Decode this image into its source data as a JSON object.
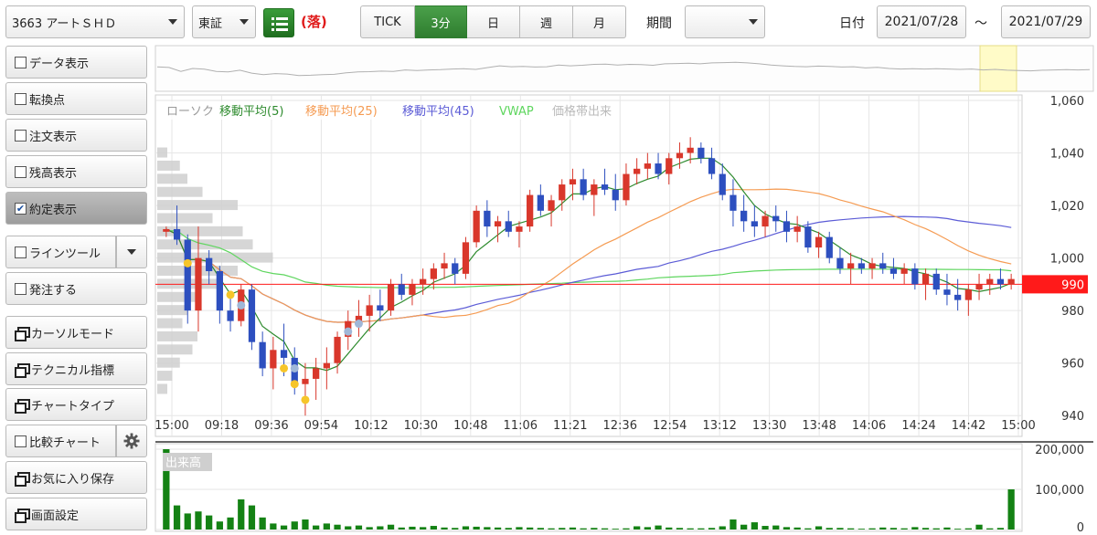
{
  "toolbar": {
    "stock": "3663 アートＳＨＤ",
    "market": "東証",
    "list_icon": "list-icon",
    "status": "(落)",
    "intervals": [
      "TICK",
      "3分",
      "日",
      "週",
      "月"
    ],
    "active_interval": "3分",
    "period_label": "期間",
    "period_value": "",
    "date_label": "日付",
    "date_from": "2021/07/28",
    "date_sep": "～",
    "date_to": "2021/07/29"
  },
  "sidebar": {
    "data_display": "データ表示",
    "turning_point": "転換点",
    "order_display": "注文表示",
    "balance_display": "残高表示",
    "executed_display": "約定表示",
    "line_tool": "ラインツール",
    "place_order": "発注する",
    "cursor_mode": "カーソルモード",
    "technical": "テクニカル指標",
    "chart_type": "チャートタイプ",
    "compare_chart": "比較チャート",
    "save_favorite": "お気に入り保存",
    "screen_settings": "画面設定",
    "gear_icon": "gear-icon"
  },
  "colors": {
    "up": "#d9372b",
    "down": "#2d4fbf",
    "ma5": "#2e8b2e",
    "ma25": "#f59b52",
    "ma45": "#5b5bd6",
    "vwap": "#5fd65f",
    "volume": "#148214",
    "current_price": "#ff1a1a",
    "execution_mark_buy": "#f6c52a",
    "execution_mark_sell": "#9fb7d8"
  },
  "chart_data": {
    "type": "candlestick",
    "ylim": [
      930,
      1060
    ],
    "y_ticks": [
      "1,060",
      "1,040",
      "1,020",
      "1,000",
      "980",
      "960",
      "940"
    ],
    "x_ticks": [
      "15:00",
      "09:18",
      "09:36",
      "09:54",
      "10:12",
      "10:30",
      "10:48",
      "11:06",
      "11:21",
      "12:36",
      "12:54",
      "13:12",
      "13:30",
      "13:48",
      "14:06",
      "14:24",
      "14:42",
      "15:00"
    ],
    "current_price": 990,
    "current_price_label": "990",
    "legend": [
      "ローソク",
      "移動平均(5)",
      "移動平均(25)",
      "移動平均(45)",
      "VWAP",
      "価格帯出来"
    ],
    "candles": [
      [
        1010,
        1012,
        1008,
        1011
      ],
      [
        1011,
        1020,
        1005,
        1007
      ],
      [
        1007,
        1009,
        975,
        980
      ],
      [
        980,
        1012,
        972,
        1000
      ],
      [
        1000,
        1003,
        990,
        995
      ],
      [
        995,
        997,
        975,
        980
      ],
      [
        980,
        986,
        972,
        976
      ],
      [
        976,
        990,
        974,
        988
      ],
      [
        988,
        990,
        965,
        968
      ],
      [
        968,
        972,
        955,
        958
      ],
      [
        958,
        970,
        950,
        965
      ],
      [
        965,
        975,
        955,
        962
      ],
      [
        962,
        966,
        948,
        952
      ],
      [
        952,
        960,
        940,
        954
      ],
      [
        954,
        962,
        946,
        958
      ],
      [
        958,
        966,
        950,
        960
      ],
      [
        960,
        972,
        956,
        970
      ],
      [
        970,
        980,
        965,
        976
      ],
      [
        976,
        984,
        970,
        978
      ],
      [
        978,
        986,
        972,
        982
      ],
      [
        982,
        988,
        976,
        980
      ],
      [
        980,
        992,
        978,
        990
      ],
      [
        990,
        994,
        984,
        986
      ],
      [
        986,
        992,
        982,
        990
      ],
      [
        990,
        996,
        986,
        992
      ],
      [
        992,
        998,
        988,
        996
      ],
      [
        996,
        1002,
        992,
        998
      ],
      [
        998,
        1000,
        990,
        994
      ],
      [
        994,
        1008,
        992,
        1006
      ],
      [
        1006,
        1020,
        1004,
        1018
      ],
      [
        1018,
        1022,
        1008,
        1012
      ],
      [
        1012,
        1016,
        1006,
        1014
      ],
      [
        1014,
        1018,
        1008,
        1010
      ],
      [
        1010,
        1014,
        1004,
        1012
      ],
      [
        1012,
        1026,
        1010,
        1024
      ],
      [
        1024,
        1028,
        1016,
        1018
      ],
      [
        1018,
        1024,
        1012,
        1022
      ],
      [
        1022,
        1030,
        1018,
        1028
      ],
      [
        1028,
        1034,
        1022,
        1030
      ],
      [
        1030,
        1034,
        1022,
        1024
      ],
      [
        1024,
        1030,
        1016,
        1028
      ],
      [
        1028,
        1034,
        1024,
        1026
      ],
      [
        1026,
        1032,
        1018,
        1022
      ],
      [
        1022,
        1036,
        1020,
        1032
      ],
      [
        1032,
        1038,
        1028,
        1034
      ],
      [
        1034,
        1040,
        1030,
        1036
      ],
      [
        1036,
        1040,
        1030,
        1032
      ],
      [
        1032,
        1040,
        1028,
        1038
      ],
      [
        1038,
        1044,
        1034,
        1040
      ],
      [
        1040,
        1046,
        1036,
        1042
      ],
      [
        1042,
        1044,
        1036,
        1038
      ],
      [
        1038,
        1042,
        1030,
        1032
      ],
      [
        1032,
        1036,
        1022,
        1024
      ],
      [
        1024,
        1030,
        1012,
        1018
      ],
      [
        1018,
        1024,
        1010,
        1014
      ],
      [
        1014,
        1020,
        1008,
        1012
      ],
      [
        1012,
        1018,
        1008,
        1016
      ],
      [
        1016,
        1020,
        1010,
        1014
      ],
      [
        1014,
        1018,
        1006,
        1010
      ],
      [
        1010,
        1016,
        1006,
        1012
      ],
      [
        1012,
        1014,
        1002,
        1004
      ],
      [
        1004,
        1010,
        1000,
        1008
      ],
      [
        1008,
        1010,
        998,
        1000
      ],
      [
        1000,
        1004,
        994,
        996
      ],
      [
        996,
        1002,
        990,
        998
      ],
      [
        998,
        1000,
        994,
        996
      ],
      [
        996,
        1000,
        992,
        998
      ],
      [
        998,
        1002,
        994,
        996
      ],
      [
        996,
        1000,
        992,
        994
      ],
      [
        994,
        998,
        990,
        996
      ],
      [
        996,
        998,
        988,
        990
      ],
      [
        990,
        996,
        984,
        994
      ],
      [
        994,
        996,
        986,
        988
      ],
      [
        988,
        994,
        982,
        986
      ],
      [
        986,
        992,
        980,
        984
      ],
      [
        984,
        990,
        978,
        988
      ],
      [
        988,
        994,
        984,
        990
      ],
      [
        990,
        994,
        986,
        992
      ],
      [
        992,
        996,
        988,
        990
      ],
      [
        990,
        994,
        988,
        992
      ]
    ],
    "volume_ylim": [
      0,
      200000
    ],
    "volume_ticks": [
      "200,000",
      "100,000",
      "0"
    ],
    "volume_label": "出来高",
    "volume": [
      200000,
      60000,
      40000,
      45000,
      35000,
      20000,
      30000,
      75000,
      60000,
      30000,
      15000,
      10000,
      20000,
      25000,
      10000,
      15000,
      12000,
      8000,
      10000,
      6000,
      8000,
      12000,
      5000,
      7000,
      6000,
      9000,
      5000,
      4000,
      8000,
      7000,
      6000,
      5000,
      4000,
      6000,
      5000,
      4000,
      3000,
      4000,
      5000,
      3000,
      4000,
      3000,
      2000,
      3000,
      8000,
      6000,
      10000,
      5000,
      4000,
      3000,
      3000,
      4000,
      8000,
      25000,
      12000,
      18000,
      9000,
      10000,
      6000,
      5000,
      3000,
      8000,
      4000,
      4000,
      3000,
      2000,
      3000,
      5000,
      4000,
      3000,
      6000,
      4000,
      3000,
      5000,
      2000,
      3000,
      12000,
      3000,
      4000,
      100000
    ]
  }
}
